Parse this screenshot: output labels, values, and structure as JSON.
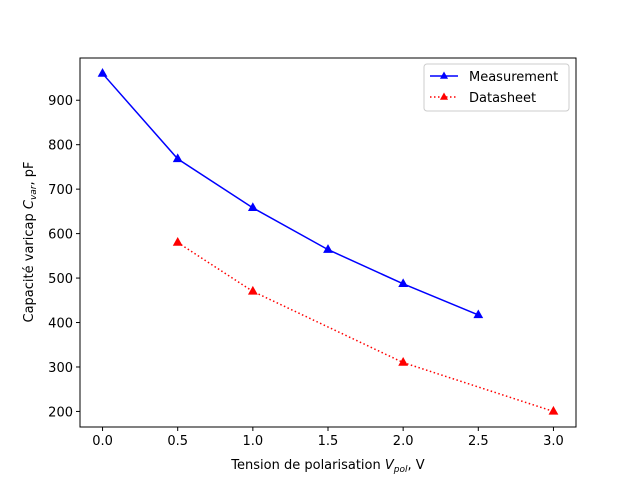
{
  "chart_data": {
    "type": "line",
    "xlabel": {
      "main": "Tension de polarisation ",
      "sym": "V",
      "sub": "pol",
      "unit": ", V"
    },
    "ylabel": {
      "main": "Capacité varicap ",
      "sym": "C",
      "sub": "var",
      "unit": ", pF"
    },
    "xlim": [
      -0.15,
      3.15
    ],
    "ylim": [
      165,
      995
    ],
    "xticks": [
      "0.0",
      "0.5",
      "1.0",
      "1.5",
      "2.0",
      "2.5",
      "3.0"
    ],
    "yticks": [
      "200",
      "300",
      "400",
      "500",
      "600",
      "700",
      "800",
      "900"
    ],
    "legend_position": "top-right",
    "series": [
      {
        "name": "Measurement",
        "color": "#0000ff",
        "linestyle": "solid",
        "marker": "triangle-up",
        "x": [
          0.0,
          0.5,
          1.0,
          1.5,
          2.0,
          2.5
        ],
        "y": [
          960,
          768,
          658,
          564,
          487,
          417
        ]
      },
      {
        "name": "Datasheet",
        "color": "#ff0000",
        "linestyle": "dotted",
        "marker": "triangle-up",
        "x": [
          0.5,
          1.0,
          2.0,
          3.0
        ],
        "y": [
          580,
          470,
          310,
          200
        ]
      }
    ]
  }
}
